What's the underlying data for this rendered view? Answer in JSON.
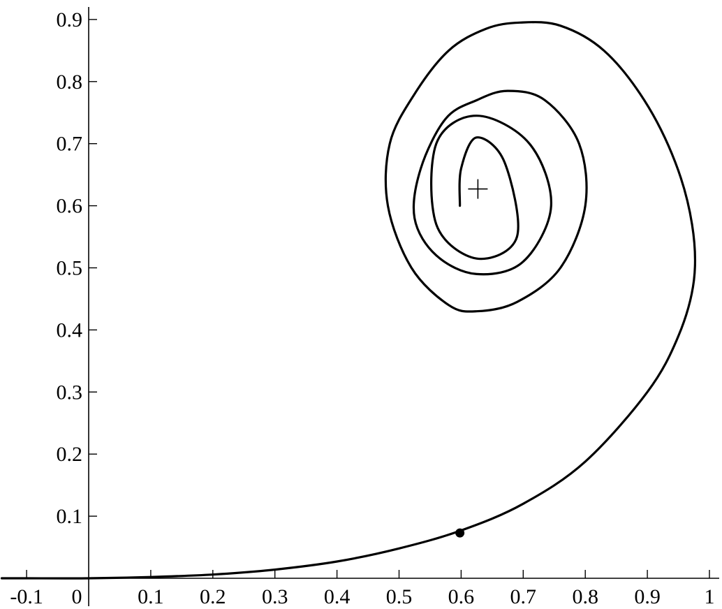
{
  "chart_data": {
    "type": "line",
    "title": "",
    "xlabel": "",
    "ylabel": "",
    "xlim": [
      -0.14,
      1.0
    ],
    "ylim": [
      0.0,
      0.92
    ],
    "grid": false,
    "legend": "none",
    "x_ticks": [
      {
        "value": -0.1,
        "label": "-0.1"
      },
      {
        "value": 0,
        "label": "0"
      },
      {
        "value": 0.1,
        "label": "0.1"
      },
      {
        "value": 0.2,
        "label": "0.2"
      },
      {
        "value": 0.3,
        "label": "0.3"
      },
      {
        "value": 0.4,
        "label": "0.4"
      },
      {
        "value": 0.5,
        "label": "0.5"
      },
      {
        "value": 0.6,
        "label": "0.6"
      },
      {
        "value": 0.7,
        "label": "0.7"
      },
      {
        "value": 0.8,
        "label": "0.8"
      },
      {
        "value": 0.9,
        "label": "0.9"
      },
      {
        "value": 1,
        "label": "1"
      }
    ],
    "y_ticks": [
      {
        "value": 0.1,
        "label": "0.1"
      },
      {
        "value": 0.2,
        "label": "0.2"
      },
      {
        "value": 0.3,
        "label": "0.3"
      },
      {
        "value": 0.4,
        "label": "0.4"
      },
      {
        "value": 0.5,
        "label": "0.5"
      },
      {
        "value": 0.6,
        "label": "0.6"
      },
      {
        "value": 0.7,
        "label": "0.7"
      },
      {
        "value": 0.8,
        "label": "0.8"
      },
      {
        "value": 0.9,
        "label": "0.9"
      }
    ],
    "spiral": {
      "center": [
        0.625,
        0.625
      ],
      "tail": {
        "x": [
          -0.14,
          -0.1,
          0.0,
          0.1,
          0.2,
          0.3,
          0.4,
          0.5,
          0.6,
          0.7,
          0.8,
          0.9,
          0.95
        ],
        "y": [
          0.0,
          0.0,
          0.0,
          0.002,
          0.006,
          0.014,
          0.027,
          0.048,
          0.077,
          0.12,
          0.188,
          0.3,
          0.39
        ]
      },
      "loops": {
        "x": [
          0.95,
          0.975,
          0.972,
          0.945,
          0.895,
          0.83,
          0.76,
          0.695,
          0.64,
          0.58,
          0.525,
          0.485,
          0.482,
          0.52,
          0.58,
          0.625,
          0.69,
          0.76,
          0.8,
          0.79,
          0.735,
          0.675,
          0.625,
          0.575,
          0.535,
          0.525,
          0.56,
          0.625,
          0.7,
          0.745,
          0.71,
          0.625,
          0.56,
          0.56,
          0.625,
          0.69,
          0.67,
          0.625,
          0.6,
          0.598
        ],
        "y": [
          0.39,
          0.48,
          0.57,
          0.67,
          0.77,
          0.85,
          0.89,
          0.895,
          0.885,
          0.85,
          0.78,
          0.7,
          0.6,
          0.5,
          0.44,
          0.43,
          0.445,
          0.5,
          0.6,
          0.7,
          0.77,
          0.785,
          0.77,
          0.74,
          0.66,
          0.58,
          0.52,
          0.49,
          0.51,
          0.6,
          0.7,
          0.745,
          0.7,
          0.57,
          0.515,
          0.55,
          0.67,
          0.71,
          0.66,
          0.6
        ]
      }
    },
    "marked_point": {
      "x": 0.598,
      "y": 0.073
    },
    "equilibrium_marker": {
      "x": 0.627,
      "y": 0.627
    }
  }
}
